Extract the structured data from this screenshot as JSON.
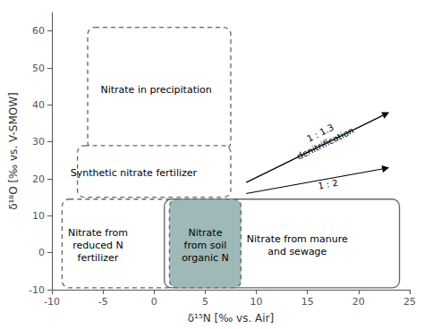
{
  "chart_data": {
    "type": "regions",
    "xlabel": "δ¹⁵N [‰ vs. Air]",
    "ylabel": "δ¹⁸O [‰ vs. V-SMOW]",
    "xlim": [
      -10,
      25
    ],
    "ylim": [
      -10,
      65
    ],
    "xticks": [
      -10,
      -5,
      0,
      5,
      10,
      15,
      20,
      25
    ],
    "yticks": [
      -10,
      0,
      10,
      20,
      30,
      40,
      50,
      60
    ],
    "grid": false,
    "boxes": [
      {
        "name": "Nitrate in precipitation",
        "x0": -6.5,
        "y0": 28,
        "width": 14,
        "height": 33,
        "line_style": "dashed",
        "color": "white",
        "label_x": 0.2,
        "label_y": 44
      },
      {
        "name": "Synthetic nitrate fertilizer",
        "x0": -7.5,
        "y0": 15,
        "width": 15,
        "height": 14,
        "line_style": "dashed",
        "color": "white",
        "label_x": -2.0,
        "label_y": 21.5
      },
      {
        "name": "Nitrate from\nreduced N\nfertilizer",
        "x0": -9,
        "y0": -9.5,
        "width": 11,
        "height": 24,
        "line_style": "dashed",
        "color": "white",
        "label_x": -5.5,
        "label_y": 2
      },
      {
        "name": "Nitrate from manure\nand sewage",
        "x0": 1,
        "y0": -9.5,
        "width": 23,
        "height": 24,
        "line_style": "solid",
        "color": "white",
        "label_x": 14,
        "label_y": 2
      },
      {
        "name": "Nitrate\nfrom soil\norganic N",
        "x0": 1.5,
        "y0": -9.5,
        "width": 7,
        "height": 24,
        "line_style": "dashed",
        "color": "#9fb8b8",
        "label_x": 5.0,
        "label_y": 2
      }
    ],
    "arrows": [
      {
        "x_start": 9,
        "y_start": 19,
        "x_end": 23,
        "y_end": 38,
        "label": "1 : 1.3\ndenitrification",
        "label_x": 16.5,
        "label_y": 31
      },
      {
        "x_start": 9,
        "y_start": 16,
        "x_end": 23,
        "y_end": 23,
        "label": "1 : 2",
        "label_x": 17,
        "label_y": 18.5
      }
    ]
  }
}
